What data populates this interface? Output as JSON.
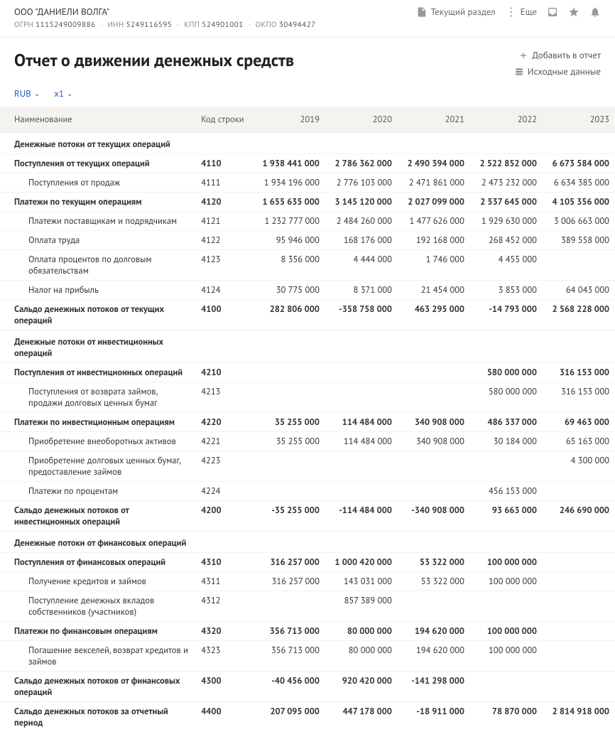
{
  "company": {
    "name": "ООО \"ДАНИЕЛИ ВОЛГА\"",
    "ogrn_label": "ОГРН",
    "ogrn": "1115249009886",
    "inn_label": "ИНН",
    "inn": "5249116595",
    "kpp_label": "КПП",
    "kpp": "524901001",
    "okpo_label": "ОКПО",
    "okpo": "30494427"
  },
  "topmenu": {
    "current_section": "Текущий раздел",
    "more": "Еще"
  },
  "page": {
    "title": "Отчет о движении денежных средств",
    "add_to_report": "Добавить в отчет",
    "source_data": "Исходные данные"
  },
  "controls": {
    "currency": "RUB",
    "scale": "x1"
  },
  "table": {
    "headers": {
      "name": "Наименование",
      "code": "Код строки",
      "y2019": "2019",
      "y2020": "2020",
      "y2021": "2021",
      "y2022": "2022",
      "y2023": "2023"
    },
    "rows": [
      {
        "type": "section",
        "name": "Денежные потоки от текущих операций"
      },
      {
        "type": "bold",
        "name": "Поступления от текущих операций",
        "code": "4110",
        "v": [
          "1 938 441 000",
          "2 786 362 000",
          "2 490 394 000",
          "2 522 852 000",
          "6 673 584 000"
        ]
      },
      {
        "type": "indent",
        "name": "Поступления от продаж",
        "code": "4111",
        "v": [
          "1 934 196 000",
          "2 776 103 000",
          "2 471 861 000",
          "2 473 232 000",
          "6 634 385 000"
        ]
      },
      {
        "type": "bold",
        "name": "Платежи по текущим операциям",
        "code": "4120",
        "v": [
          "1 655 635 000",
          "3 145 120 000",
          "2 027 099 000",
          "2 537 645 000",
          "4 105 356 000"
        ]
      },
      {
        "type": "indent",
        "name": "Платежи поставщикам и подрядчикам",
        "code": "4121",
        "v": [
          "1 232 777 000",
          "2 484 260 000",
          "1 477 626 000",
          "1 929 630 000",
          "3 006 663 000"
        ]
      },
      {
        "type": "indent",
        "name": "Оплата труда",
        "code": "4122",
        "v": [
          "95 946 000",
          "168 176 000",
          "192 168 000",
          "268 452 000",
          "389 558 000"
        ]
      },
      {
        "type": "indent",
        "name": "Оплата процентов по долговым обязательствам",
        "code": "4123",
        "v": [
          "8 356 000",
          "4 444 000",
          "1 746 000",
          "4 455 000",
          ""
        ]
      },
      {
        "type": "indent",
        "name": "Налог на прибыль",
        "code": "4124",
        "v": [
          "30 775 000",
          "8 371 000",
          "21 454 000",
          "3 853 000",
          "64 043 000"
        ]
      },
      {
        "type": "bold",
        "name": "Сальдо денежных потоков от текущих операций",
        "code": "4100",
        "v": [
          "282 806 000",
          "-358 758 000",
          "463 295 000",
          "-14 793 000",
          "2 568 228 000"
        ]
      },
      {
        "type": "section",
        "name": "Денежные потоки от инвестиционных операций"
      },
      {
        "type": "bold",
        "name": "Поступления от инвестиционных операций",
        "code": "4210",
        "v": [
          "",
          "",
          "",
          "580 000 000",
          "316 153 000"
        ]
      },
      {
        "type": "indent",
        "name": "Поступления от возврата займов, продажи долговых ценных бумаг",
        "code": "4213",
        "v": [
          "",
          "",
          "",
          "580 000 000",
          "316 153 000"
        ]
      },
      {
        "type": "bold",
        "name": "Платежи по инвестиционным операциям",
        "code": "4220",
        "v": [
          "35 255 000",
          "114 484 000",
          "340 908 000",
          "486 337 000",
          "69 463 000"
        ]
      },
      {
        "type": "indent",
        "name": "Приобретение внеоборотных активов",
        "code": "4221",
        "v": [
          "35 255 000",
          "114 484 000",
          "340 908 000",
          "30 184 000",
          "65 163 000"
        ]
      },
      {
        "type": "indent",
        "name": "Приобретение долговых ценных бумаг, предоставление займов",
        "code": "4223",
        "v": [
          "",
          "",
          "",
          "",
          "4 300 000"
        ]
      },
      {
        "type": "indent",
        "name": "Платежи по процентам",
        "code": "4224",
        "v": [
          "",
          "",
          "",
          "456 153 000",
          ""
        ]
      },
      {
        "type": "bold",
        "name": "Сальдо денежных потоков от инвестиционных операций",
        "code": "4200",
        "v": [
          "-35 255 000",
          "-114 484 000",
          "-340 908 000",
          "93 663 000",
          "246 690 000"
        ]
      },
      {
        "type": "section",
        "name": "Денежные потоки от финансовых операций"
      },
      {
        "type": "bold",
        "name": "Поступления от финансовых операций",
        "code": "4310",
        "v": [
          "316 257 000",
          "1 000 420 000",
          "53 322 000",
          "100 000 000",
          ""
        ]
      },
      {
        "type": "indent",
        "name": "Получение кредитов и займов",
        "code": "4311",
        "v": [
          "316 257 000",
          "143 031 000",
          "53 322 000",
          "100 000 000",
          ""
        ]
      },
      {
        "type": "indent",
        "name": "Поступление денежных вкладов собственников (участников)",
        "code": "4312",
        "v": [
          "",
          "857 389 000",
          "",
          "",
          ""
        ]
      },
      {
        "type": "bold",
        "name": "Платежи по финансовым операциям",
        "code": "4320",
        "v": [
          "356 713 000",
          "80 000 000",
          "194 620 000",
          "100 000 000",
          ""
        ]
      },
      {
        "type": "indent",
        "name": "Погашение векселей, возврат кредитов и займов",
        "code": "4323",
        "v": [
          "356 713 000",
          "80 000 000",
          "194 620 000",
          "100 000 000",
          ""
        ]
      },
      {
        "type": "bold",
        "name": "Сальдо денежных потоков от финансовых операций",
        "code": "4300",
        "v": [
          "-40 456 000",
          "920 420 000",
          "-141 298 000",
          "",
          ""
        ]
      },
      {
        "type": "bold",
        "name": "Сальдо денежных потоков за отчетный период",
        "code": "4400",
        "v": [
          "207 095 000",
          "447 178 000",
          "-18 911 000",
          "78 870 000",
          "2 814 918 000"
        ]
      }
    ]
  }
}
